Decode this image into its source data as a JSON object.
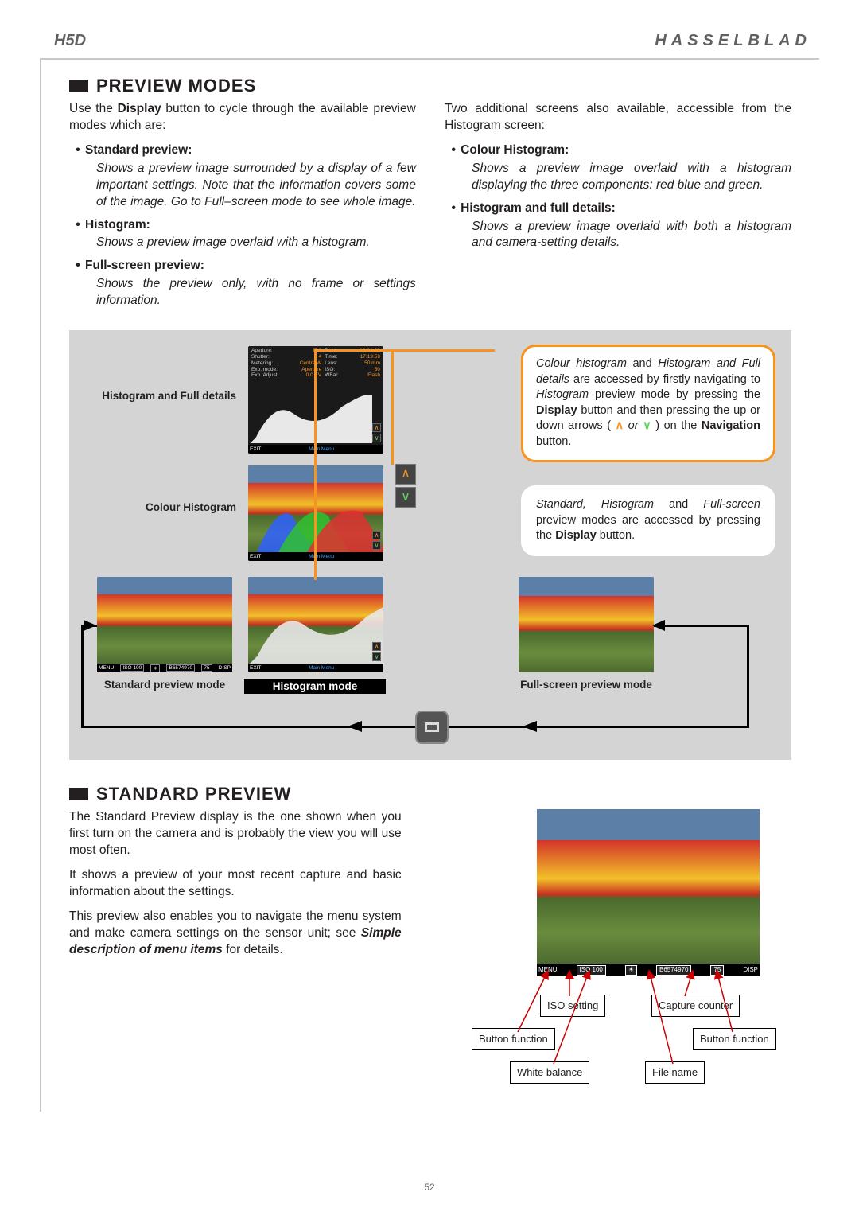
{
  "header": {
    "model": "H5D",
    "brand": "HASSELBLAD"
  },
  "section1": {
    "heading": "PREVIEW MODES",
    "intro_left": "Use the Display button to cycle through the available preview modes which are:",
    "intro_right": "Two additional screens also available, accessible from the Histogram screen:",
    "left_items": [
      {
        "title": "Standard preview:",
        "desc": "Shows a preview image surrounded by a display of a few important settings. Note that the information covers some of the image. Go to Full–screen mode to see whole image."
      },
      {
        "title": "Histogram:",
        "desc": "Shows a preview image overlaid with a histogram."
      },
      {
        "title": "Full-screen preview:",
        "desc": "Shows the preview only, with no frame or settings information."
      }
    ],
    "right_items": [
      {
        "title": "Colour Histogram:",
        "desc": "Shows a preview image overlaid with a histogram displaying the three components: red blue and green."
      },
      {
        "title": "Histogram and full details:",
        "desc": "Shows a preview image overlaid with both a histogram and camera-setting details."
      }
    ]
  },
  "diagram": {
    "callout_orange_html": "<i>Colour histogram</i> and <i>Histogram and Full details</i> are accessed by firstly navigating to <i>Histogram</i> preview mode by pressing the <b>Display</b> button and then pressing the up or down arrows ( <span class='inline-arrow-up'>∧</span> <i>or</i> <span class='inline-arrow-down'>∨</span> ) on the <b>Navigation</b> button.",
    "callout_white_html": "<i>Standard, Histogram</i> and <i>Full-screen</i> preview modes are accessed by pressing the <b>Display</b> button.",
    "label_histfull": "Histogram and Full details",
    "label_colourhist": "Colour Histogram",
    "label_standard": "Standard preview mode",
    "label_histogram": "Histogram mode",
    "label_fullscreen": "Full-screen preview mode",
    "detail_rows": [
      [
        "Aperture:",
        "f5.6",
        "Date:",
        "13-01-09"
      ],
      [
        "Shutter:",
        "4",
        "Time:",
        "17:19:59"
      ],
      [
        "Metering:",
        "Centre W",
        "Lens:",
        "50 mm"
      ],
      [
        "Exp. mode:",
        "Aperture",
        "ISO:",
        "50"
      ],
      [
        "Exp. Adjust:",
        "0.0 EV",
        "WBal:",
        "Flash"
      ]
    ],
    "status_menu": "MENU",
    "status_iso": "ISO 100",
    "status_wb": "☀",
    "status_file": "B6574970",
    "status_count": "75",
    "status_disp": "DISP",
    "status_exit": "EXIT",
    "status_mainmenu": "Main Menu",
    "colors": {
      "orange": "#f7931e",
      "panel_bg": "#d4d4d4",
      "screen_bg": "#1a1a1a"
    }
  },
  "section2": {
    "heading": "STANDARD PREVIEW",
    "p1": "The Standard Preview display is the one shown when you first turn on the camera and is probably the view you will use most often.",
    "p2": "It shows a preview of your most recent capture and basic information about the settings.",
    "p3_html": "This preview also enables you to navigate the menu system and make camera settings on the sensor unit; see <b><i>Simple description of menu items</i></b> for details.",
    "annotations": {
      "iso": "ISO setting",
      "capture_counter": "Capture counter",
      "button_function": "Button function",
      "white_balance": "White balance",
      "file_name": "File name"
    }
  },
  "page_number": "52"
}
